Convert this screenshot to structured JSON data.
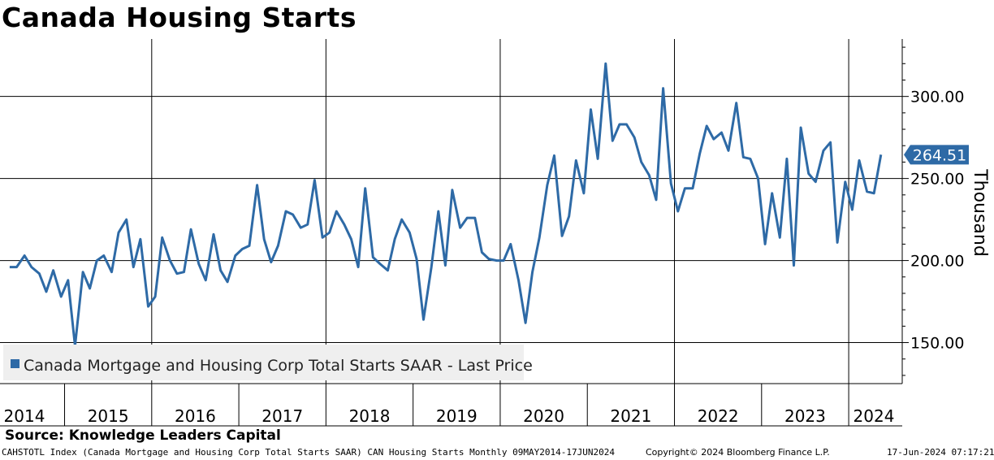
{
  "title": "Canada Housing Starts",
  "source": "Source: Knowledge Leaders Capital",
  "footer": {
    "description": "CAHSTOTL Index (Canada Mortgage and Housing Corp Total Starts SAAR) CAN Housing Starts  Monthly 09MAY2014-17JUN2024",
    "copyright": "Copyright© 2024 Bloomberg Finance L.P.",
    "timestamp": "17-Jun-2024 07:17:21"
  },
  "chart_data": {
    "type": "line",
    "title": "Canada Housing Starts",
    "ylabel": "Thousand",
    "ylim": [
      125,
      335
    ],
    "y_ticks": [
      150,
      200,
      250,
      300
    ],
    "y_tick_labels": [
      "150.00",
      "200.00",
      "250.00",
      "300.00"
    ],
    "x_start": "2014-05",
    "x_end": "2024-06",
    "year_labels": [
      "2014",
      "2015",
      "2016",
      "2017",
      "2018",
      "2019",
      "2020",
      "2021",
      "2022",
      "2023",
      "2024"
    ],
    "series": [
      {
        "name": "Canada Mortgage and Housing Corp Total Starts SAAR - Last Price",
        "color": "#2e6aa6",
        "last_value_label": "264.51",
        "x": [
          2014.37,
          2014.45,
          2014.54,
          2014.62,
          2014.71,
          2014.79,
          2014.87,
          2014.96,
          2015.04,
          2015.12,
          2015.21,
          2015.29,
          2015.37,
          2015.45,
          2015.54,
          2015.62,
          2015.71,
          2015.79,
          2015.87,
          2015.96,
          2016.04,
          2016.12,
          2016.21,
          2016.29,
          2016.37,
          2016.45,
          2016.54,
          2016.62,
          2016.71,
          2016.79,
          2016.87,
          2016.96,
          2017.04,
          2017.12,
          2017.21,
          2017.29,
          2017.37,
          2017.45,
          2017.54,
          2017.62,
          2017.71,
          2017.79,
          2017.87,
          2017.96,
          2018.04,
          2018.12,
          2018.21,
          2018.29,
          2018.37,
          2018.45,
          2018.54,
          2018.62,
          2018.71,
          2018.79,
          2018.87,
          2018.96,
          2019.04,
          2019.12,
          2019.21,
          2019.29,
          2019.37,
          2019.45,
          2019.54,
          2019.62,
          2019.71,
          2019.79,
          2019.87,
          2019.96,
          2020.04,
          2020.12,
          2020.21,
          2020.29,
          2020.37,
          2020.45,
          2020.54,
          2020.62,
          2020.71,
          2020.79,
          2020.87,
          2020.96,
          2021.04,
          2021.12,
          2021.21,
          2021.29,
          2021.37,
          2021.45,
          2021.54,
          2021.62,
          2021.71,
          2021.79,
          2021.87,
          2021.96,
          2022.04,
          2022.12,
          2022.21,
          2022.29,
          2022.37,
          2022.45,
          2022.54,
          2022.62,
          2022.71,
          2022.79,
          2022.87,
          2022.96,
          2023.04,
          2023.12,
          2023.21,
          2023.29,
          2023.37,
          2023.45,
          2023.54,
          2023.62,
          2023.71,
          2023.79,
          2023.87,
          2023.96,
          2024.04,
          2024.12,
          2024.21,
          2024.29,
          2024.37
        ],
        "values": [
          196,
          196,
          203,
          196,
          192,
          181,
          194,
          178,
          188,
          148,
          193,
          183,
          200,
          203,
          193,
          217,
          225,
          196,
          213,
          172,
          178,
          214,
          200,
          192,
          193,
          219,
          198,
          188,
          216,
          194,
          187,
          203,
          207,
          209,
          246,
          213,
          199,
          209,
          230,
          228,
          220,
          222,
          249,
          214,
          217,
          230,
          222,
          213,
          196,
          244,
          202,
          198,
          194,
          213,
          225,
          217,
          201,
          164,
          196,
          230,
          197,
          243,
          220,
          226,
          226,
          205,
          201,
          200,
          200,
          210,
          188,
          162,
          193,
          214,
          246,
          264,
          215,
          227,
          261,
          241,
          292,
          262,
          320,
          273,
          283,
          283,
          275,
          260,
          252,
          237,
          305,
          247,
          230,
          244,
          244,
          265,
          282,
          274,
          278,
          267,
          296,
          263,
          262,
          250,
          210,
          241,
          214,
          262,
          197,
          281,
          253,
          248,
          267,
          272,
          211,
          248,
          231,
          261,
          242,
          241,
          264.5
        ]
      }
    ]
  }
}
